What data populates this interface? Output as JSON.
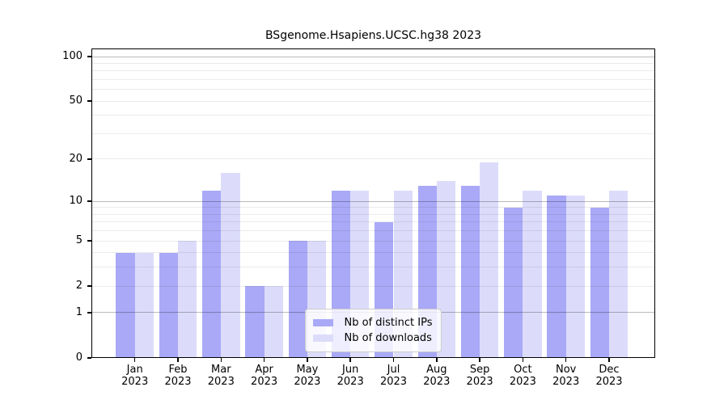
{
  "figure": {
    "title": "BSgenome.Hsapiens.UCSC.hg38 2023"
  },
  "chart_data": {
    "type": "bar",
    "title": "BSgenome.Hsapiens.UCSC.hg38 2023",
    "xlabel": "",
    "ylabel": "",
    "yscale": "log1p",
    "ylim": [
      0,
      113
    ],
    "yticks": [
      0,
      1,
      2,
      5,
      10,
      20,
      50,
      100
    ],
    "grid": true,
    "grid_major": [
      1,
      10,
      100
    ],
    "grid_minor": [
      2,
      3,
      4,
      5,
      6,
      7,
      8,
      9,
      20,
      30,
      40,
      50,
      60,
      70,
      80,
      90
    ],
    "categories": [
      "Jan",
      "Feb",
      "Mar",
      "Apr",
      "May",
      "Jun",
      "Jul",
      "Aug",
      "Sep",
      "Oct",
      "Nov",
      "Dec"
    ],
    "x_sublabel": "2023",
    "series": [
      {
        "name": "Nb of distinct IPs",
        "color": "#a9a9f7",
        "values": [
          4,
          4,
          12,
          2,
          5,
          12,
          7,
          13,
          13,
          9,
          11,
          9
        ]
      },
      {
        "name": "Nb of downloads",
        "color": "#dcdcfa",
        "values": [
          4,
          5,
          16,
          2,
          5,
          12,
          12,
          14,
          19,
          12,
          11,
          12
        ]
      }
    ],
    "legend_position": "lower center"
  },
  "colors": {
    "axis": "#000000",
    "grid_major": "#bababa",
    "grid_minor": "#ebebeb",
    "legend_border": "#cccccc",
    "bar_distinct_ips": "#a9a9f7",
    "bar_downloads": "#dcdcfa"
  }
}
